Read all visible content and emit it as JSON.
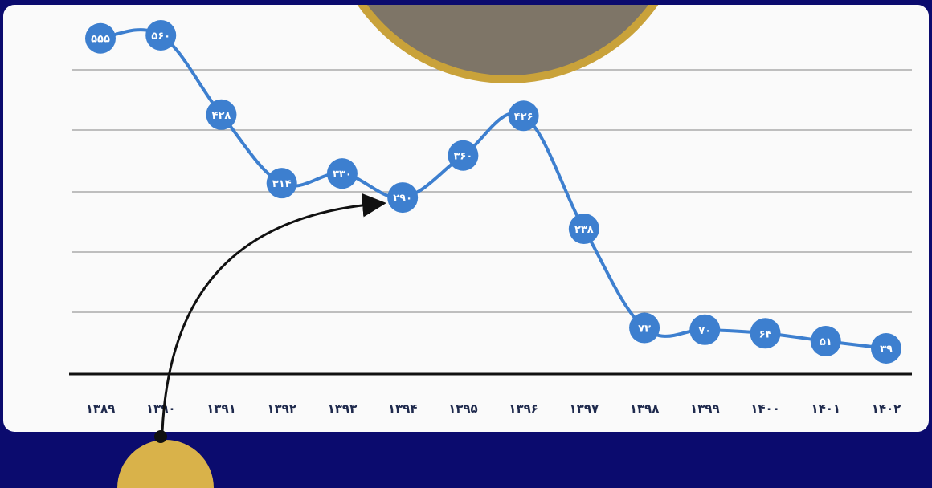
{
  "chart_data": {
    "type": "line",
    "categories": [
      "۱۳۸۹",
      "۱۳۹۰",
      "۱۳۹۱",
      "۱۳۹۲",
      "۱۳۹۳",
      "۱۳۹۴",
      "۱۳۹۵",
      "۱۳۹۶",
      "۱۳۹۷",
      "۱۳۹۸",
      "۱۳۹۹",
      "۱۴۰۰",
      "۱۴۰۱",
      "۱۴۰۲"
    ],
    "values": [
      555,
      560,
      428,
      314,
      330,
      290,
      360,
      426,
      238,
      73,
      70,
      64,
      51,
      39
    ],
    "value_labels": [
      "۵۵۵",
      "۵۶۰",
      "۴۲۸",
      "۳۱۴",
      "۳۳۰",
      "۲۹۰",
      "۳۶۰",
      "۴۲۶",
      "۲۳۸",
      "۷۳",
      "۷۰",
      "۶۴",
      "۵۱",
      "۳۹"
    ],
    "title": "",
    "xlabel": "",
    "ylabel": "",
    "grid": true,
    "legend": "none",
    "colors": {
      "line": "#3d7fcf",
      "marker": "#3d7fcf",
      "marker_text": "#ffffff",
      "background": "#0b0b6e",
      "panel": "#fafafa",
      "gridline": "#9a9a9a",
      "baseline": "#111111",
      "accent_gold": "#c9a23a"
    }
  }
}
